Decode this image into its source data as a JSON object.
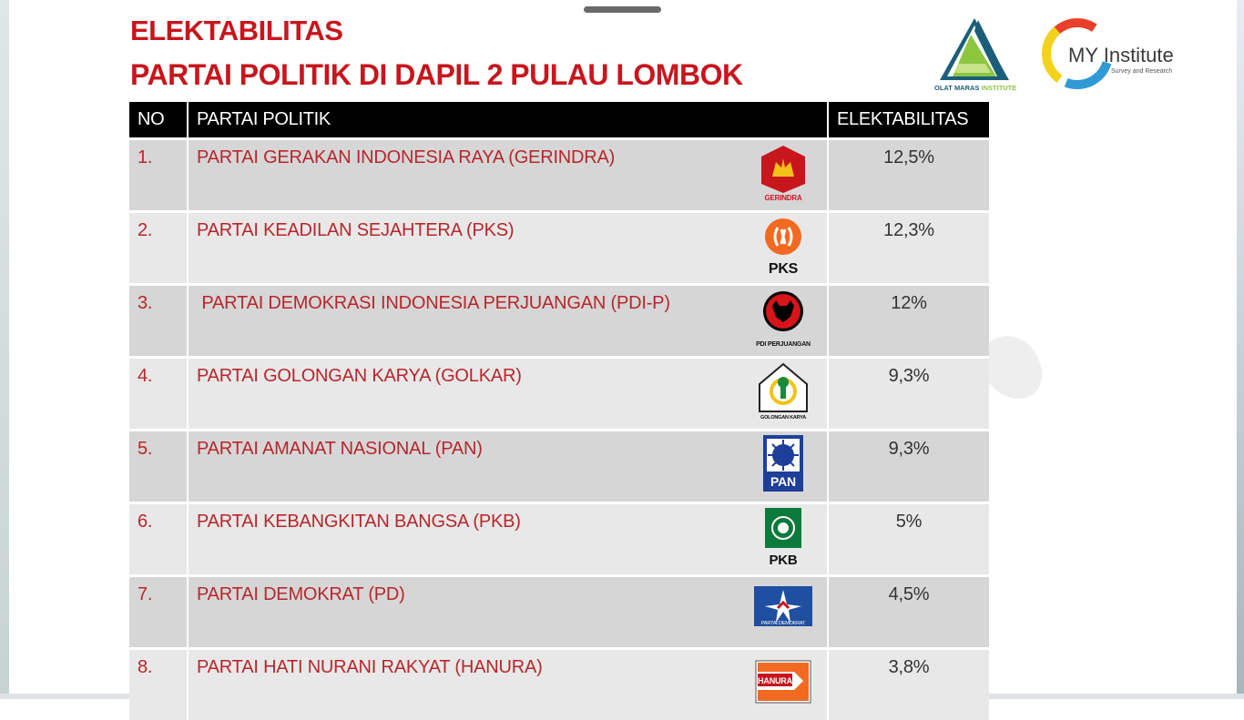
{
  "title_line1": "ELEKTABILITAS",
  "title_line2": "PARTAI POLITIK DI DAPIL 2 PULAU LOMBOK",
  "logos": {
    "olat_maras_a": "OLAT MARAS",
    "olat_maras_b": "INSTITUTE",
    "my_institute": "MY Institute",
    "my_institute_sub": "Survey and Research"
  },
  "table": {
    "headers": {
      "no": "NO",
      "party": "PARTAI POLITIK",
      "electability": "ELEKTABILITAS"
    },
    "rows": [
      {
        "no": "1.",
        "party": "PARTAI GERAKAN INDONESIA RAYA (GERINDRA)",
        "value": "12,5%",
        "logo_icon": "gerindra-logo-icon",
        "logo_text": "GERINDRA"
      },
      {
        "no": "2.",
        "party": "PARTAI KEADILAN SEJAHTERA (PKS)",
        "value": "12,3%",
        "logo_icon": "pks-logo-icon",
        "logo_text": "PKS"
      },
      {
        "no": "3.",
        "party": " PARTAI DEMOKRASI INDONESIA PERJUANGAN (PDI-P)",
        "value": "12%",
        "logo_icon": "pdip-logo-icon",
        "logo_text": "PDI PERJUANGAN"
      },
      {
        "no": "4.",
        "party": "PARTAI GOLONGAN KARYA (GOLKAR)",
        "value": "9,3%",
        "logo_icon": "golkar-logo-icon",
        "logo_text": "GOLONGAN KARYA"
      },
      {
        "no": "5.",
        "party": "PARTAI AMANAT NASIONAL (PAN)",
        "value": "9,3%",
        "logo_icon": "pan-logo-icon",
        "logo_text": "PAN"
      },
      {
        "no": "6.",
        "party": "PARTAI KEBANGKITAN BANGSA (PKB)",
        "value": "5%",
        "logo_icon": "pkb-logo-icon",
        "logo_text": "PKB"
      },
      {
        "no": "7.",
        "party": "PARTAI DEMOKRAT (PD)",
        "value": "4,5%",
        "logo_icon": "demokrat-logo-icon",
        "logo_text": "PARTAI DEMOKRAT"
      },
      {
        "no": "8.",
        "party": "PARTAI HATI NURANI RAKYAT (HANURA)",
        "value": "3,8%",
        "logo_icon": "hanura-logo-icon",
        "logo_text": "HANURA"
      }
    ]
  },
  "colors": {
    "title_red": "#c8161d",
    "row_text_red": "#b8262b",
    "header_bg": "#000000",
    "row_odd": "#d6d6d6",
    "row_even": "#e8e8e8"
  }
}
